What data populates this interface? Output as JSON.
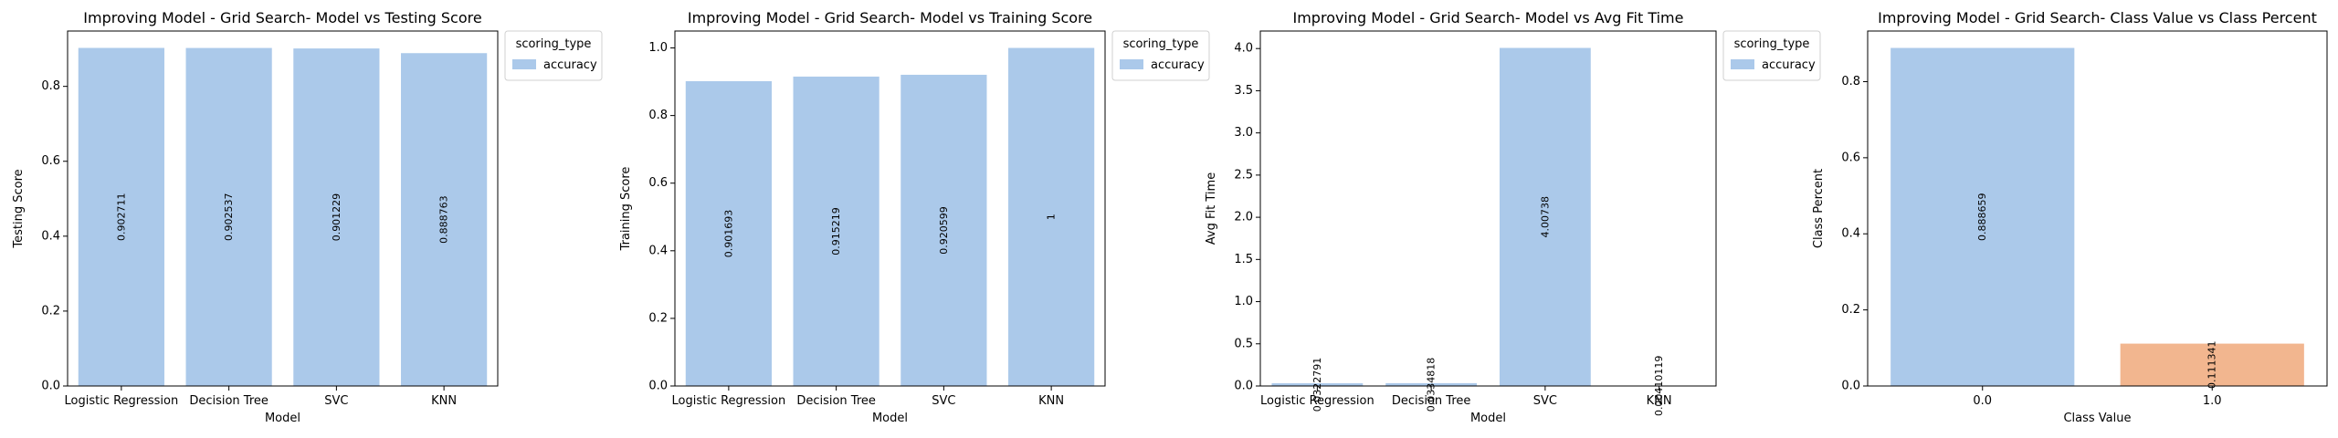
{
  "chart_data": [
    {
      "type": "bar",
      "title": "Improving Model - Grid Search- Model vs Testing Score",
      "xlabel": "Model",
      "ylabel": "Testing Score",
      "categories": [
        "Logistic Regression",
        "Decision Tree",
        "SVC",
        "KNN"
      ],
      "series": [
        {
          "name": "accuracy",
          "values": [
            0.902711,
            0.902537,
            0.901229,
            0.888763
          ]
        }
      ],
      "data_labels": [
        "0.902711",
        "0.902537",
        "0.901229",
        "0.888763"
      ],
      "ylim": [
        0,
        0.9478
      ],
      "yticks": [
        0.0,
        0.2,
        0.4,
        0.6,
        0.8
      ],
      "ytick_labels": [
        "0.0",
        "0.2",
        "0.4",
        "0.6",
        "0.8"
      ],
      "legend": {
        "title": "scoring_type",
        "entries": [
          "accuracy"
        ],
        "placement": "outside-top-right"
      },
      "colors": [
        "#abc9ea"
      ],
      "grid": false
    },
    {
      "type": "bar",
      "title": "Improving Model - Grid Search- Model vs Training Score",
      "xlabel": "Model",
      "ylabel": "Training Score",
      "categories": [
        "Logistic Regression",
        "Decision Tree",
        "SVC",
        "KNN"
      ],
      "series": [
        {
          "name": "accuracy",
          "values": [
            0.901693,
            0.915219,
            0.920599,
            1.0
          ]
        }
      ],
      "data_labels": [
        "0.901693",
        "0.915219",
        "0.920599",
        "1"
      ],
      "ylim": [
        0,
        1.05
      ],
      "yticks": [
        0.0,
        0.2,
        0.4,
        0.6,
        0.8,
        1.0
      ],
      "ytick_labels": [
        "0.0",
        "0.2",
        "0.4",
        "0.6",
        "0.8",
        "1.0"
      ],
      "legend": {
        "title": "scoring_type",
        "entries": [
          "accuracy"
        ],
        "placement": "outside-top-right"
      },
      "colors": [
        "#abc9ea"
      ],
      "grid": false
    },
    {
      "type": "bar",
      "title": "Improving Model - Grid Search- Model vs Avg Fit Time",
      "xlabel": "Model",
      "ylabel": "Avg Fit Time",
      "categories": [
        "Logistic Regression",
        "Decision Tree",
        "SVC",
        "KNN"
      ],
      "series": [
        {
          "name": "accuracy",
          "values": [
            0.0322791,
            0.0334818,
            4.00738,
            0.00410119
          ]
        }
      ],
      "data_labels": [
        "0.0322791",
        "0.0334818",
        "4.00738",
        "0.00410119"
      ],
      "ylim": [
        0,
        4.2077
      ],
      "yticks": [
        0.0,
        0.5,
        1.0,
        1.5,
        2.0,
        2.5,
        3.0,
        3.5,
        4.0
      ],
      "ytick_labels": [
        "0.0",
        "0.5",
        "1.0",
        "1.5",
        "2.0",
        "2.5",
        "3.0",
        "3.5",
        "4.0"
      ],
      "legend": {
        "title": "scoring_type",
        "entries": [
          "accuracy"
        ],
        "placement": "outside-top-right"
      },
      "colors": [
        "#abc9ea"
      ],
      "grid": false
    },
    {
      "type": "bar",
      "title": "Improving Model - Grid Search- Class Value vs Class Percent",
      "xlabel": "Class Value",
      "ylabel": "Class Percent",
      "categories": [
        "0.0",
        "1.0"
      ],
      "series": [
        {
          "values": [
            0.888659,
            0.111341
          ]
        }
      ],
      "data_labels": [
        "0.888659",
        "0.111341"
      ],
      "ylim": [
        0,
        0.9331
      ],
      "yticks": [
        0.0,
        0.2,
        0.4,
        0.6,
        0.8
      ],
      "ytick_labels": [
        "0.0",
        "0.2",
        "0.4",
        "0.6",
        "0.8"
      ],
      "bar_colors": [
        "#abc9ea",
        "#f2b68f"
      ],
      "legend": null,
      "grid": false
    }
  ]
}
